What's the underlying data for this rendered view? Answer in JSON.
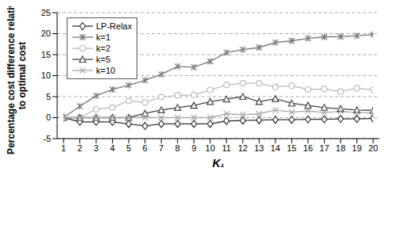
{
  "chart_data": {
    "type": "line",
    "x_label": "K₁",
    "y_label": "Percentage cost difference relative to optimal cost",
    "x": [
      1,
      2,
      3,
      4,
      5,
      6,
      7,
      8,
      9,
      10,
      11,
      12,
      13,
      14,
      15,
      16,
      17,
      18,
      19,
      20
    ],
    "xlim": [
      1,
      20
    ],
    "xticks": [
      1,
      2,
      3,
      4,
      5,
      6,
      7,
      8,
      9,
      10,
      11,
      12,
      13,
      14,
      15,
      16,
      17,
      18,
      19,
      20
    ],
    "ylim": [
      -5,
      25
    ],
    "yticks": [
      -5,
      0,
      5,
      10,
      15,
      20,
      25
    ],
    "grid": true,
    "legend": "upper left",
    "series": [
      {
        "name": "LP-Relax",
        "color": "#333333",
        "marker": "diamond",
        "line_style": "solid",
        "values": [
          0,
          -1,
          -1,
          -1,
          -1.5,
          -2,
          -1.5,
          -1.5,
          -1.5,
          -1.5,
          -0.8,
          -0.7,
          -0.6,
          -0.5,
          -0.5,
          -0.4,
          -0.4,
          -0.3,
          -0.3,
          -0.2
        ]
      },
      {
        "name": "k=1",
        "color": "#777777",
        "marker": "asterisk",
        "line_style": "solid",
        "values": [
          0,
          2.7,
          5.2,
          6.7,
          7.7,
          8.9,
          10.3,
          12.2,
          12.0,
          13.4,
          15.5,
          16.2,
          16.7,
          17.9,
          18.3,
          18.9,
          19.2,
          19.3,
          19.5,
          19.8
        ]
      },
      {
        "name": "k=2",
        "color": "#bbbbbb",
        "marker": "circle",
        "line_style": "solid",
        "values": [
          0,
          0,
          2,
          2.4,
          4,
          3.6,
          4.9,
          5.3,
          5.4,
          6.6,
          7.8,
          8.2,
          8.2,
          7.3,
          7.6,
          6.7,
          6.8,
          6.2,
          7,
          6.6
        ]
      },
      {
        "name": "k=5",
        "color": "#444444",
        "marker": "triangle",
        "line_style": "solid",
        "values": [
          0,
          0,
          0,
          0,
          0,
          1,
          1.8,
          2.4,
          2.9,
          3.8,
          4.4,
          5,
          3.8,
          4.5,
          3.4,
          2.9,
          2.4,
          2.1,
          1.8,
          1.7
        ]
      },
      {
        "name": "k=10",
        "color": "#aaaaaa",
        "marker": "cross",
        "line_style": "solid",
        "values": [
          0,
          0,
          0,
          0,
          0,
          0,
          0,
          0,
          0,
          0,
          0.9,
          0.7,
          0.9,
          1.8,
          1.3,
          1.6,
          1.2,
          1.5,
          1.2,
          1.1
        ]
      }
    ]
  }
}
